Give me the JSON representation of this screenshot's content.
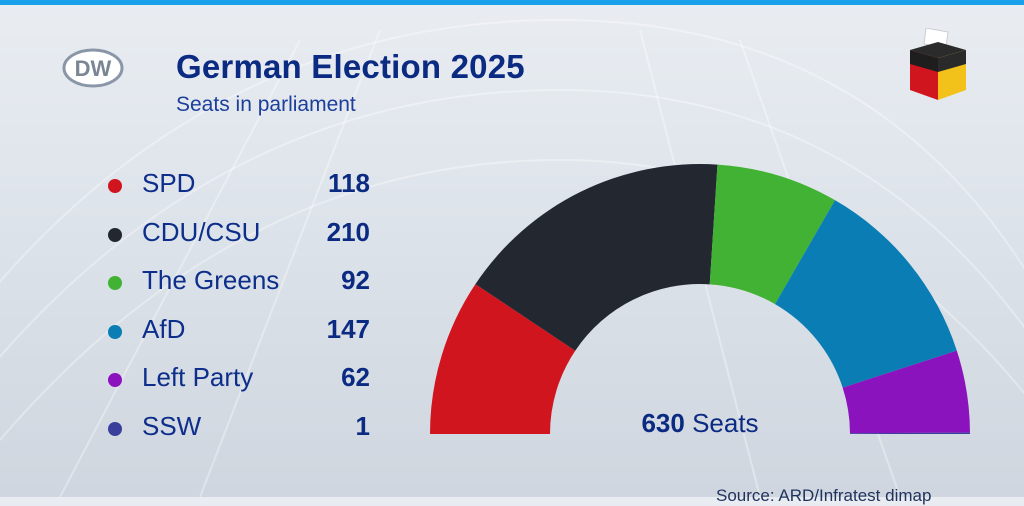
{
  "header": {
    "logo_text": "DW",
    "title": "German Election 2025",
    "subtitle": "Seats in parliament"
  },
  "total": {
    "number": "630",
    "label": "Seats"
  },
  "source": "Source: ARD/Infratest dimap",
  "colors": {
    "title": "#0b2a82",
    "accent_strip": "#19a0ea"
  },
  "chart_data": {
    "type": "pie",
    "subtype": "semicircle-parliament",
    "title": "German Election 2025",
    "subtitle": "Seats in parliament",
    "total_seats": 630,
    "series": [
      {
        "name": "SPD",
        "value": 118,
        "color": "#d0151f"
      },
      {
        "name": "CDU/CSU",
        "value": 210,
        "color": "#23272f"
      },
      {
        "name": "The Greens",
        "value": 92,
        "color": "#41b233"
      },
      {
        "name": "AfD",
        "value": 147,
        "color": "#0a7db4"
      },
      {
        "name": "Left Party",
        "value": 62,
        "color": "#8b13bd"
      },
      {
        "name": "SSW",
        "value": 1,
        "color": "#3a3f9c"
      }
    ],
    "legend_position": "left"
  }
}
